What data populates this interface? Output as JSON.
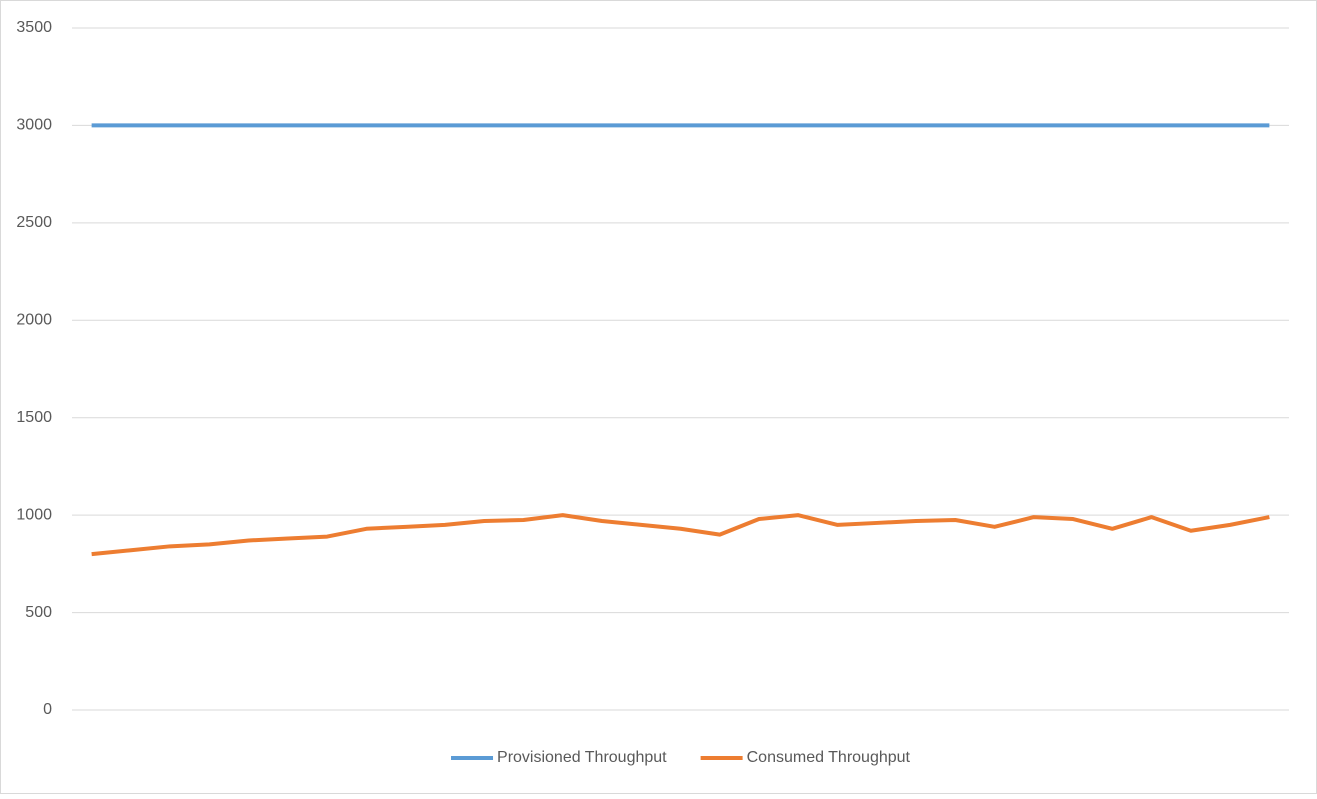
{
  "chart_data": {
    "type": "line",
    "categories": [
      null,
      null,
      null,
      null,
      null,
      null,
      null,
      null,
      null,
      null,
      null,
      null,
      null,
      null,
      null,
      null,
      null,
      null,
      null,
      null,
      null,
      null,
      null,
      null,
      null,
      null,
      null,
      null,
      null,
      null,
      null
    ],
    "series": [
      {
        "name": "Provisioned Throughput",
        "color": "#5b9bd5",
        "values": [
          3000,
          3000,
          3000,
          3000,
          3000,
          3000,
          3000,
          3000,
          3000,
          3000,
          3000,
          3000,
          3000,
          3000,
          3000,
          3000,
          3000,
          3000,
          3000,
          3000,
          3000,
          3000,
          3000,
          3000,
          3000,
          3000,
          3000,
          3000,
          3000,
          3000,
          3000
        ]
      },
      {
        "name": "Consumed Throughput",
        "color": "#ed7d31",
        "values": [
          800,
          820,
          840,
          850,
          870,
          880,
          890,
          930,
          940,
          950,
          970,
          975,
          1000,
          970,
          950,
          930,
          900,
          980,
          1000,
          950,
          960,
          970,
          975,
          940,
          990,
          980,
          930,
          990,
          920,
          950,
          990
        ]
      }
    ],
    "ylim": [
      0,
      3500
    ],
    "yticks": [
      0,
      500,
      1000,
      1500,
      2000,
      2500,
      3000,
      3500
    ],
    "grid": true,
    "legend": "bottom"
  }
}
